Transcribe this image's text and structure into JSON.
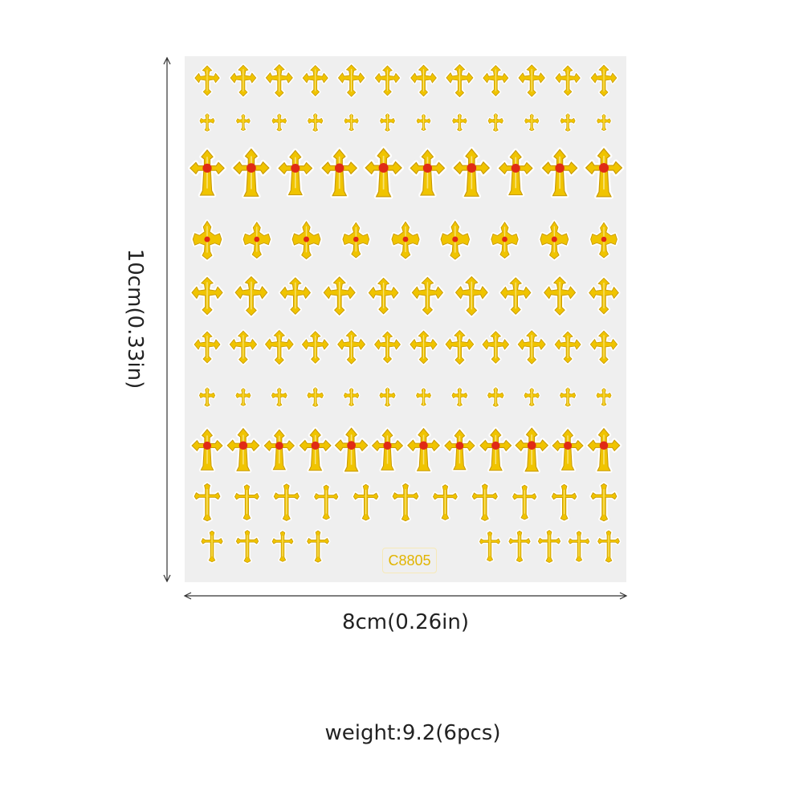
{
  "product": {
    "code": "C8805",
    "height_text": "10cm(0.33in)",
    "width_text": "8cm(0.26in)",
    "weight_text": "weight:9.2(6pcs)"
  },
  "colors": {
    "sheet": "#efefef",
    "gold": "#f0c400",
    "gold_dark": "#c99a00",
    "jewel": "#e02a16",
    "outline": "#ffffff",
    "dimension_line": "#333333",
    "text": "#222222"
  },
  "stickers": {
    "icon": "cross-icon",
    "rows": [
      {
        "style": "ornate",
        "count": 12,
        "jewel": false
      },
      {
        "style": "small",
        "count": 12,
        "jewel": false
      },
      {
        "style": "tall-fleury",
        "count": 10,
        "jewel": true
      },
      {
        "style": "ornate-round",
        "count": 9,
        "jewel": true
      },
      {
        "style": "ornate",
        "count": 10,
        "jewel": false
      },
      {
        "style": "ornate",
        "count": 12,
        "jewel": false
      },
      {
        "style": "small",
        "count": 12,
        "jewel": false
      },
      {
        "style": "tall-fleury",
        "count": 12,
        "jewel": true
      },
      {
        "style": "latin",
        "count": 11,
        "jewel": false
      },
      {
        "style": "latin",
        "count": 9,
        "jewel": false
      }
    ]
  }
}
